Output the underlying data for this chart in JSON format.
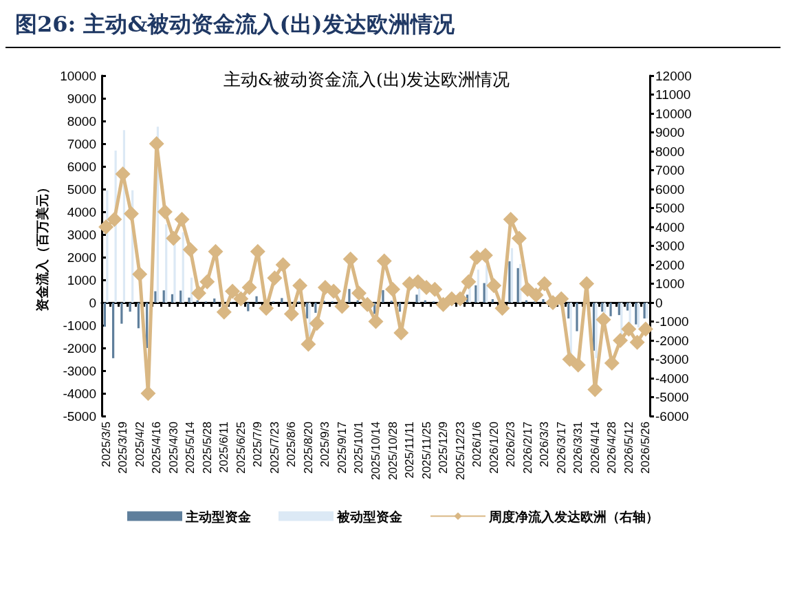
{
  "chart_data": {
    "type": "bar",
    "title": "图26: 主动&被动资金流入(出)发达欧洲情况",
    "subtitle": "主动&被动资金流入(出)发达欧洲情况",
    "ylabel": "资金流入（百万美元）",
    "categories": [
      "2025/3/5",
      null,
      "2025/3/19",
      null,
      "2025/4/2",
      null,
      "2025/4/16",
      null,
      "2025/4/30",
      null,
      "2025/5/14",
      null,
      "2025/5/28",
      null,
      "2025/6/11",
      null,
      "2025/6/25",
      null,
      "2025/7/9",
      null,
      "2025/7/23",
      null,
      "2025/8/6",
      null,
      "2025/8/20",
      null,
      "2025/9/3",
      null,
      "2025/9/17",
      null,
      "2025/10/1",
      null,
      "2025/10/14",
      null,
      "2025/10/28",
      null,
      "2025/11/11",
      null,
      "2025/11/25",
      null,
      "2025/12/9",
      null,
      "2025/12/23",
      null,
      "2026/1/6",
      null,
      "2026/1/20",
      null,
      "2026/2/3",
      null,
      "2026/2/17",
      null,
      "2026/3/3",
      null,
      "2026/3/17",
      null,
      "2026/3/31",
      null,
      "2026/4/14",
      null,
      "2026/4/28",
      null,
      "2026/5/12",
      null,
      "2026/5/26"
    ],
    "series": [
      {
        "name": "主动型资金",
        "color": "#5f7f9c",
        "values": [
          -1060,
          -2450,
          -930,
          -400,
          -1130,
          -2000,
          500,
          540,
          370,
          530,
          220,
          100,
          50,
          180,
          30,
          20,
          null,
          -380,
          280,
          null,
          50,
          200,
          null,
          50,
          -700,
          -450,
          80,
          50,
          null,
          600,
          100,
          null,
          -500,
          550,
          80,
          -400,
          50,
          350,
          100,
          50,
          null,
          null,
          null,
          350,
          760,
          860,
          150,
          null,
          1820,
          1520,
          100,
          50,
          150,
          null,
          null,
          -700,
          -1260,
          null,
          -2120,
          -400,
          -600,
          -550,
          -350,
          -960,
          -700
        ]
      },
      {
        "name": "被动型资金",
        "color": "#dce9f5",
        "values": [
          4950,
          6700,
          7600,
          4950,
          null,
          null,
          7750,
          3450,
          2600,
          3100,
          1100,
          null,
          null,
          null,
          null,
          null,
          null,
          null,
          null,
          null,
          null,
          null,
          null,
          null,
          -1500,
          null,
          null,
          null,
          null,
          null,
          null,
          0,
          null,
          null,
          null,
          null,
          null,
          700,
          null,
          null,
          null,
          null,
          null,
          800,
          1450,
          1650,
          null,
          null,
          2400,
          1700,
          null,
          null,
          null,
          null,
          null,
          -2300,
          null,
          null,
          -2450,
          -450,
          null,
          -1400,
          -1000,
          -1100,
          -700
        ]
      },
      {
        "name": "周度净流入发达欧洲（右轴）",
        "type": "line",
        "axis": "y2",
        "color": "#d9b783",
        "values": [
          4000,
          4400,
          6800,
          4700,
          1500,
          -4800,
          8400,
          4800,
          3400,
          4400,
          2800,
          500,
          1100,
          2700,
          -500,
          600,
          200,
          800,
          2700,
          -300,
          1300,
          2000,
          -600,
          900,
          -2200,
          -1100,
          800,
          600,
          -200,
          2300,
          500,
          -100,
          -1000,
          2200,
          700,
          -1600,
          1000,
          1100,
          800,
          700,
          -100,
          200,
          200,
          1100,
          2400,
          2500,
          900,
          -300,
          4400,
          3400,
          700,
          400,
          1000,
          0,
          200,
          -3000,
          -3300,
          1000,
          -4600,
          -900,
          -3200,
          -2000,
          -1400,
          -2100,
          -1400
        ]
      }
    ],
    "ylim": [
      -5000,
      10000
    ],
    "yticks": [
      -5000,
      -4000,
      -3000,
      -2000,
      -1000,
      0,
      1000,
      2000,
      3000,
      4000,
      5000,
      6000,
      7000,
      8000,
      9000,
      10000
    ],
    "y2lim": [
      -6000,
      12000
    ],
    "y2ticks": [
      -6000,
      -5000,
      -4000,
      -3000,
      -2000,
      -1000,
      0,
      1000,
      2000,
      3000,
      4000,
      5000,
      6000,
      7000,
      8000,
      9000,
      10000,
      11000,
      12000
    ],
    "legend": "bottom",
    "marker": "diamond"
  }
}
